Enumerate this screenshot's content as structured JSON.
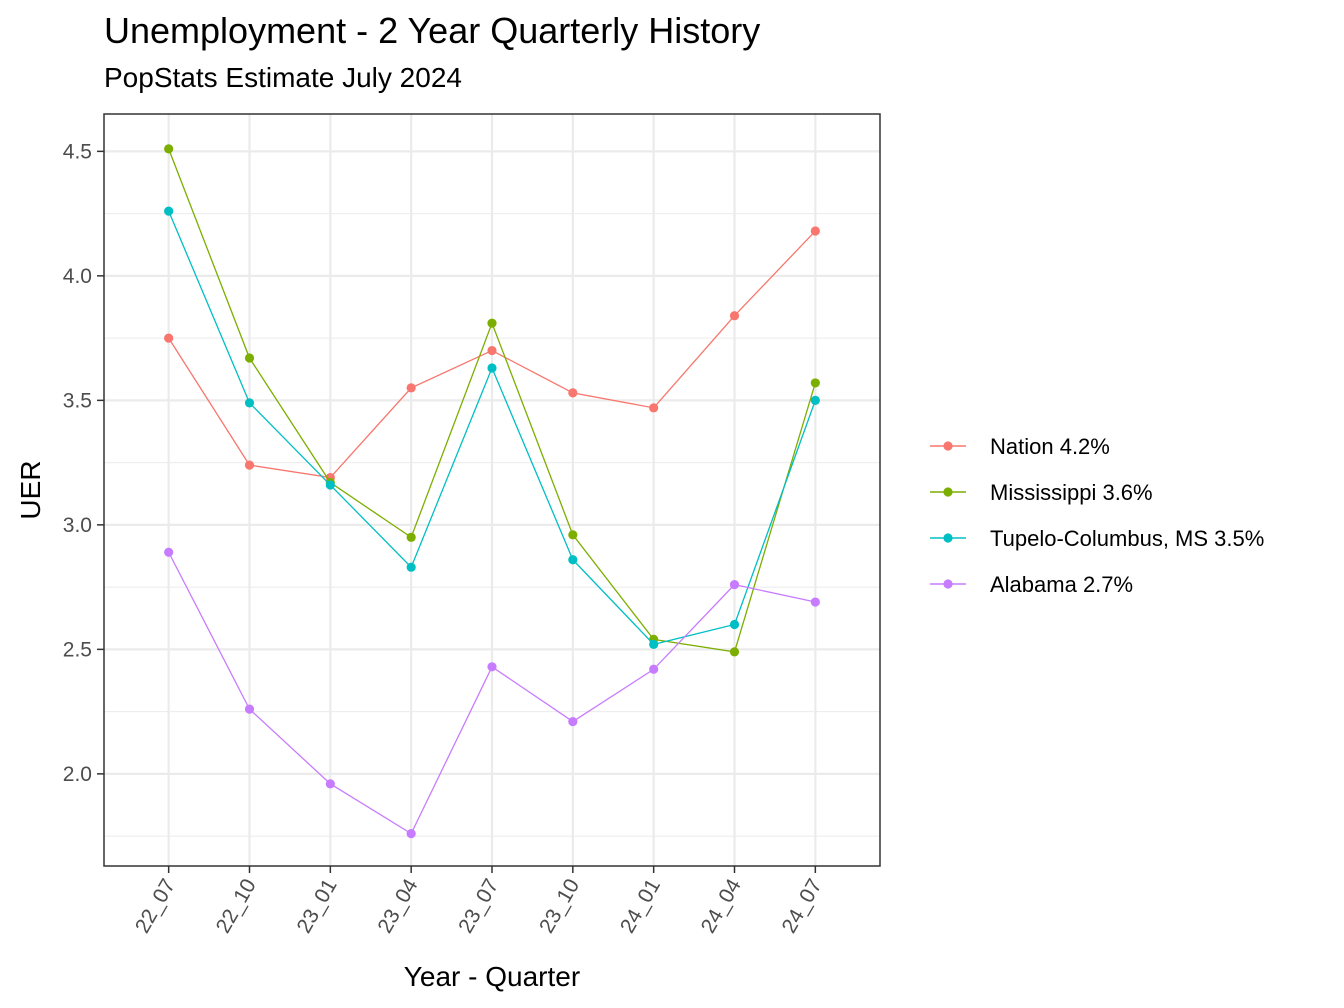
{
  "chart_data": {
    "type": "line",
    "title": "Unemployment - 2 Year Quarterly History",
    "subtitle": "PopStats Estimate July 2024",
    "xlabel": "Year - Quarter",
    "ylabel": "UER",
    "categories": [
      "22_07",
      "22_10",
      "23_01",
      "23_04",
      "23_07",
      "23_10",
      "24_01",
      "24_04",
      "24_07"
    ],
    "ylim": [
      1.63,
      4.65
    ],
    "yticks": [
      2.0,
      2.5,
      3.0,
      3.5,
      4.0,
      4.5
    ],
    "ytick_labels": [
      "2.0",
      "2.5",
      "3.0",
      "3.5",
      "4.0",
      "4.5"
    ],
    "grid": true,
    "legend_position": "right",
    "series": [
      {
        "name": "Nation 4.2%",
        "color": "#F8766D",
        "values": [
          3.75,
          3.24,
          3.19,
          3.55,
          3.7,
          3.53,
          3.47,
          3.84,
          4.18
        ]
      },
      {
        "name": "Mississippi 3.6%",
        "color": "#7CAE00",
        "values": [
          4.51,
          3.67,
          3.17,
          2.95,
          3.81,
          2.96,
          2.54,
          2.49,
          3.57
        ]
      },
      {
        "name": "Tupelo-Columbus, MS 3.5%",
        "color": "#00BFC4",
        "values": [
          4.26,
          3.49,
          3.16,
          2.83,
          3.63,
          2.86,
          2.52,
          2.6,
          3.5
        ]
      },
      {
        "name": "Alabama 2.7%",
        "color": "#C77CFF",
        "values": [
          2.89,
          2.26,
          1.96,
          1.76,
          2.43,
          2.21,
          2.42,
          2.76,
          2.69
        ]
      }
    ]
  }
}
